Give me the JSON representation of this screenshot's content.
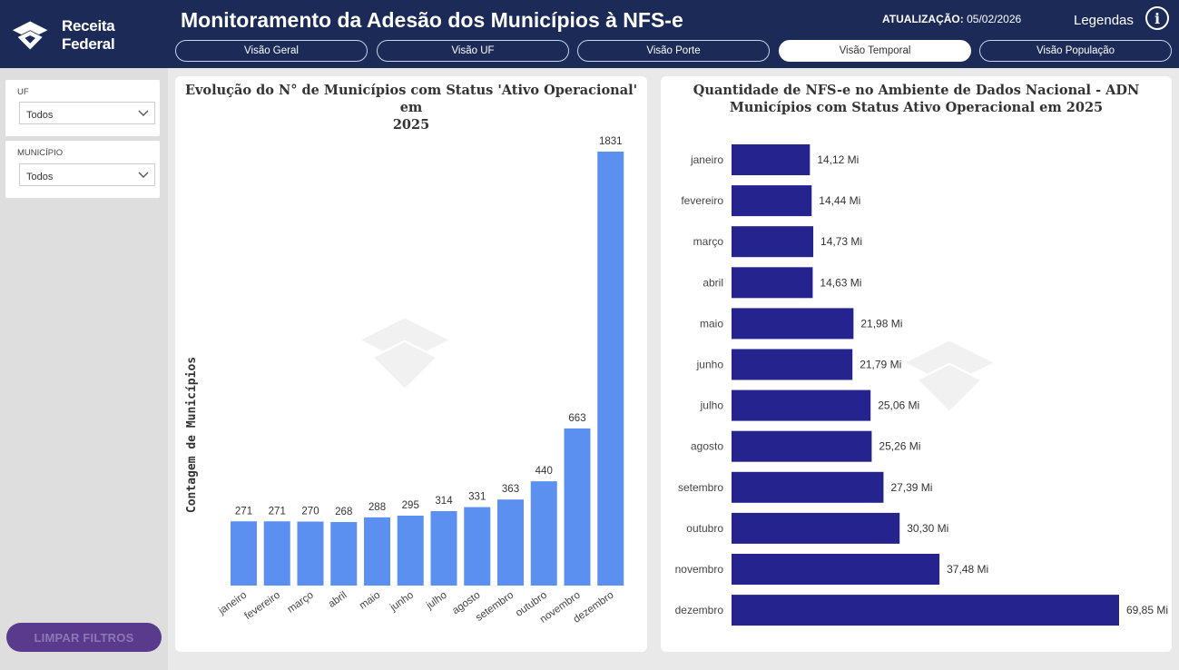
{
  "header": {
    "logo_text": "Receita Federal",
    "title": "Monitoramento da Adesão dos Municípios à NFS-e",
    "update_label": "ATUALIZAÇÃO:",
    "update_date": "05/02/2026",
    "legend_link": "Legendas",
    "info_icon": "info-icon"
  },
  "tabs": [
    {
      "label": "Visão Geral",
      "active": false
    },
    {
      "label": "Visão UF",
      "active": false
    },
    {
      "label": "Visão Porte",
      "active": false
    },
    {
      "label": "Visão Temporal",
      "active": true
    },
    {
      "label": "Visão População",
      "active": false
    }
  ],
  "filters": {
    "uf": {
      "label": "UF",
      "value": "Todos"
    },
    "municipio": {
      "label": "MUNICÍPIO",
      "value": "Todos"
    },
    "clear_button": "LIMPAR FILTROS"
  },
  "colors": {
    "header_bg": "#1b2a57",
    "bar_light": "#5b8ff0",
    "bar_dark": "#25248f"
  },
  "chart_data": [
    {
      "type": "bar",
      "title_line1": "Evolução do N° de Municípios com Status 'Ativo Operacional' em",
      "title_line2": "2025",
      "ylabel": "Contagem de Municípios",
      "categories": [
        "janeiro",
        "fevereiro",
        "março",
        "abril",
        "maio",
        "junho",
        "julho",
        "agosto",
        "setembro",
        "outubro",
        "novembro",
        "dezembro"
      ],
      "values": [
        271,
        271,
        270,
        268,
        288,
        295,
        314,
        331,
        363,
        440,
        663,
        1831
      ],
      "ylim": [
        0,
        1831
      ]
    },
    {
      "type": "bar-horizontal",
      "title_line1": "Quantidade de NFS-e no Ambiente de Dados Nacional - ADN",
      "title_line2": "Municípios com Status Ativo Operacional em 2025",
      "categories": [
        "janeiro",
        "fevereiro",
        "março",
        "abril",
        "maio",
        "junho",
        "julho",
        "agosto",
        "setembro",
        "outubro",
        "novembro",
        "dezembro"
      ],
      "values": [
        14.12,
        14.44,
        14.73,
        14.63,
        21.98,
        21.79,
        25.06,
        25.26,
        27.39,
        30.3,
        37.48,
        69.85
      ],
      "labels": [
        "14,12 Mi",
        "14,44 Mi",
        "14,73 Mi",
        "14,63 Mi",
        "21,98 Mi",
        "21,79 Mi",
        "25,06 Mi",
        "25,26 Mi",
        "27,39 Mi",
        "30,30 Mi",
        "37,48 Mi",
        "69,85 Mi"
      ],
      "xlim": [
        0,
        69.85
      ]
    }
  ]
}
